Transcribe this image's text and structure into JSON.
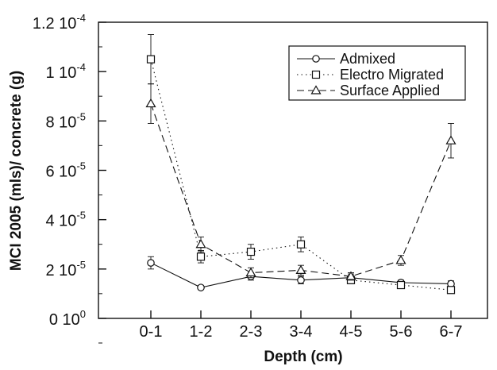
{
  "chart_data": {
    "type": "line",
    "xlabel": "Depth (cm)",
    "ylabel": "MCI 2005 (mls)/ concrete (g)",
    "categories": [
      "0-1",
      "1-2",
      "2-3",
      "3-4",
      "4-5",
      "5-6",
      "6-7"
    ],
    "y_ticks": [
      {
        "value": 0,
        "mantissa": "0",
        "exponent": "0"
      },
      {
        "value": 2e-05,
        "mantissa": "2",
        "exponent": "-5"
      },
      {
        "value": 4e-05,
        "mantissa": "4",
        "exponent": "-5"
      },
      {
        "value": 6e-05,
        "mantissa": "6",
        "exponent": "-5"
      },
      {
        "value": 8e-05,
        "mantissa": "8",
        "exponent": "-5"
      },
      {
        "value": 0.0001,
        "mantissa": "1",
        "exponent": "-4"
      },
      {
        "value": 0.00012,
        "mantissa": "1.2",
        "exponent": "-4"
      }
    ],
    "ylim": [
      0,
      0.00012
    ],
    "legend_position": "top-right",
    "grid": false,
    "series": [
      {
        "name": "Admixed",
        "marker": "circle",
        "dash": "solid",
        "values": [
          2.25e-05,
          1.25e-05,
          1.7e-05,
          1.55e-05,
          1.65e-05,
          1.45e-05,
          1.4e-05
        ],
        "errors": [
          2.5e-06,
          8e-07,
          1.5e-06,
          1.5e-06,
          1.5e-06,
          1e-06,
          1.2e-06
        ]
      },
      {
        "name": "Electro Migrated",
        "marker": "square",
        "dash": "dotted",
        "values": [
          0.000105,
          2.5e-05,
          2.7e-05,
          3e-05,
          1.55e-05,
          1.35e-05,
          1.15e-05
        ],
        "errors": [
          1e-05,
          2.5e-06,
          3e-06,
          3e-06,
          1.5e-06,
          1.2e-06,
          1e-06
        ]
      },
      {
        "name": "Surface Applied",
        "marker": "triangle",
        "dash": "dashed",
        "values": [
          8.7e-05,
          3e-05,
          1.85e-05,
          1.95e-05,
          1.7e-05,
          2.35e-05,
          7.2e-05
        ],
        "errors": [
          8e-06,
          3e-06,
          2e-06,
          2e-06,
          1.5e-06,
          2e-06,
          7e-06
        ]
      }
    ]
  }
}
